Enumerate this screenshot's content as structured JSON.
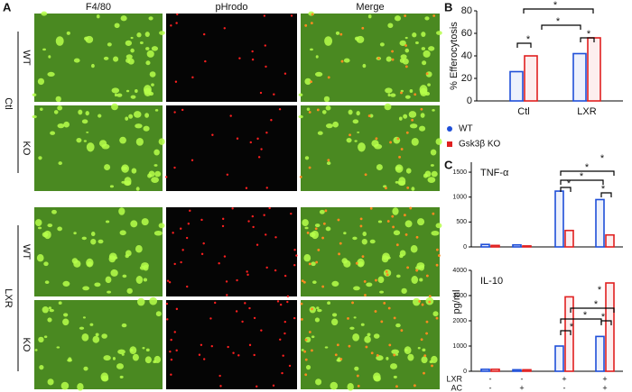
{
  "panel_labels": [
    "A",
    "B",
    "C"
  ],
  "panel_a": {
    "columns": [
      "F4/80",
      "pHrodo",
      "Merge"
    ],
    "groups": [
      {
        "label": "Ctl",
        "rows": [
          "WT",
          "KO"
        ]
      },
      {
        "label": "LXR",
        "rows": [
          "WT",
          "KO"
        ]
      }
    ]
  },
  "chart_data": [
    {
      "type": "bar",
      "y_label": "% Efferocytosis",
      "categories": [
        "Ctl",
        "LXR"
      ],
      "series": [
        {
          "name": "WT",
          "color": "#1f4fd8",
          "marker": "circle",
          "values": [
            26,
            42
          ]
        },
        {
          "name": "Gsk3β KO",
          "color": "#e02020",
          "marker": "square",
          "values": [
            40,
            56
          ]
        }
      ],
      "ylim": [
        0,
        80
      ],
      "yticks": [
        0,
        20,
        40,
        60,
        80
      ],
      "annotations": [
        "*",
        "*",
        "*",
        "*"
      ]
    },
    {
      "type": "bar",
      "title": "TNF-α",
      "series": [
        {
          "color": "#1f4fd8",
          "values": [
            50,
            40,
            1120,
            950
          ]
        },
        {
          "color": "#e02020",
          "values": [
            30,
            20,
            330,
            240
          ]
        }
      ],
      "ylim": [
        0,
        1700
      ],
      "yticks": [
        0,
        500,
        1000,
        1500
      ],
      "annotations": [
        "*",
        "*",
        "*",
        "*",
        "*"
      ]
    },
    {
      "type": "bar",
      "title": "IL-10",
      "series": [
        {
          "color": "#1f4fd8",
          "values": [
            80,
            60,
            1000,
            1380
          ]
        },
        {
          "color": "#e02020",
          "values": [
            80,
            60,
            2950,
            3500
          ]
        }
      ],
      "ylim": [
        0,
        4000
      ],
      "yticks": [
        0,
        1000,
        2000,
        3000,
        4000
      ],
      "annotations": [
        "*",
        "*",
        "*",
        "*",
        "*"
      ]
    }
  ],
  "panel_c": {
    "y_label": "pg/ml",
    "conditions": [
      {
        "label": "LXR",
        "values": [
          "-",
          "-",
          "+",
          "+"
        ]
      },
      {
        "label": "AC",
        "values": [
          "-",
          "+",
          "-",
          "+"
        ]
      }
    ]
  }
}
